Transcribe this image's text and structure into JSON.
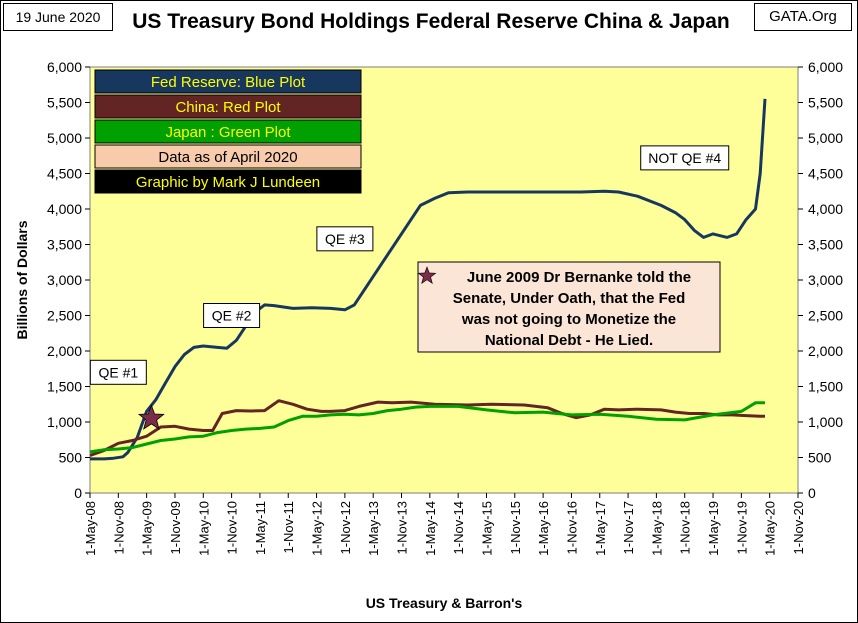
{
  "header": {
    "date": "19 June 2020",
    "title": "US Treasury Bond Holdings Federal Reserve China & Japan",
    "source": "GATA.Org"
  },
  "legend": [
    {
      "text": "Fed Reserve: Blue Plot",
      "bg": "#17375e",
      "fg": "#ffff00"
    },
    {
      "text": "China: Red Plot",
      "bg": "#632523",
      "fg": "#ffff00"
    },
    {
      "text": "Japan : Green Plot",
      "bg": "#00a000",
      "fg": "#ffff00"
    },
    {
      "text": "Data as of April 2020",
      "bg": "#f8cbad",
      "fg": "#000000"
    },
    {
      "text": "Graphic by Mark J Lundeen",
      "bg": "#000000",
      "fg": "#ffff00"
    }
  ],
  "annotations": [
    {
      "id": "qe1",
      "text": "QE #1",
      "x": "2008-11",
      "y": 1700
    },
    {
      "id": "qe2",
      "text": "QE #2",
      "x": "2010-11",
      "y": 2500
    },
    {
      "id": "qe3",
      "text": "QE #3",
      "x": "2012-11",
      "y": 3580
    },
    {
      "id": "qe4",
      "text": "NOT QE #4",
      "x": "2018-11",
      "y": 4720
    }
  ],
  "quote": {
    "lines": [
      "June 2009 Dr Bernanke told the",
      "Senate, Under Oath, that the Fed",
      "was not going to Monetize the",
      "National Debt - He Lied."
    ],
    "bg": "#fbe5d6"
  },
  "star": {
    "x": "2009-06",
    "y": 1050,
    "color": "#7b2c4a"
  },
  "footer": {
    "xlabel": "US Treasury & Barron's"
  },
  "chart_data": {
    "type": "line",
    "title": "US Treasury Bond Holdings Federal Reserve China & Japan",
    "xlabel": "US Treasury & Barron's",
    "ylabel": "Billions of Dollars",
    "ylim": [
      0,
      6000
    ],
    "yticks": [
      0,
      500,
      1000,
      1500,
      2000,
      2500,
      3000,
      3500,
      4000,
      4500,
      5000,
      5500,
      6000
    ],
    "yticklabels": [
      "0",
      "500",
      "1,000",
      "1,500",
      "2,000",
      "2,500",
      "3,000",
      "3,500",
      "4,000",
      "4,500",
      "5,000",
      "5,500",
      "6,000"
    ],
    "xlim": [
      "2008-05",
      "2020-11"
    ],
    "xticks": [
      "1-May-08",
      "1-Nov-08",
      "1-May-09",
      "1-Nov-09",
      "1-May-10",
      "1-Nov-10",
      "1-May-11",
      "1-Nov-11",
      "1-May-12",
      "1-Nov-12",
      "1-May-13",
      "1-Nov-13",
      "1-May-14",
      "1-Nov-14",
      "1-May-15",
      "1-Nov-15",
      "1-May-16",
      "1-Nov-16",
      "1-May-17",
      "1-Nov-17",
      "1-May-18",
      "1-Nov-18",
      "1-May-19",
      "1-Nov-19",
      "1-May-20",
      "1-Nov-20"
    ],
    "grid": false,
    "series": [
      {
        "name": "Fed Reserve",
        "color": "#17375e",
        "points": [
          [
            "2008-05",
            480
          ],
          [
            "2008-08",
            480
          ],
          [
            "2008-10",
            490
          ],
          [
            "2008-12",
            510
          ],
          [
            "2009-01",
            570
          ],
          [
            "2009-03",
            780
          ],
          [
            "2009-05",
            1150
          ],
          [
            "2009-07",
            1320
          ],
          [
            "2009-09",
            1550
          ],
          [
            "2009-11",
            1780
          ],
          [
            "2010-01",
            1950
          ],
          [
            "2010-03",
            2050
          ],
          [
            "2010-05",
            2070
          ],
          [
            "2010-08",
            2050
          ],
          [
            "2010-10",
            2040
          ],
          [
            "2010-12",
            2150
          ],
          [
            "2011-02",
            2350
          ],
          [
            "2011-04",
            2550
          ],
          [
            "2011-06",
            2650
          ],
          [
            "2011-08",
            2640
          ],
          [
            "2011-10",
            2620
          ],
          [
            "2011-12",
            2600
          ],
          [
            "2012-04",
            2610
          ],
          [
            "2012-08",
            2600
          ],
          [
            "2012-11",
            2580
          ],
          [
            "2013-01",
            2650
          ],
          [
            "2013-04",
            2950
          ],
          [
            "2013-07",
            3250
          ],
          [
            "2013-10",
            3550
          ],
          [
            "2014-01",
            3850
          ],
          [
            "2014-03",
            4050
          ],
          [
            "2014-06",
            4150
          ],
          [
            "2014-09",
            4230
          ],
          [
            "2015-01",
            4240
          ],
          [
            "2015-06",
            4240
          ],
          [
            "2016-01",
            4240
          ],
          [
            "2016-06",
            4240
          ],
          [
            "2017-01",
            4240
          ],
          [
            "2017-06",
            4250
          ],
          [
            "2017-09",
            4240
          ],
          [
            "2018-01",
            4180
          ],
          [
            "2018-06",
            4050
          ],
          [
            "2018-09",
            3950
          ],
          [
            "2018-11",
            3850
          ],
          [
            "2019-01",
            3700
          ],
          [
            "2019-03",
            3600
          ],
          [
            "2019-05",
            3650
          ],
          [
            "2019-08",
            3600
          ],
          [
            "2019-10",
            3650
          ],
          [
            "2019-12",
            3850
          ],
          [
            "2020-02",
            4000
          ],
          [
            "2020-03",
            4500
          ],
          [
            "2020-04",
            5550
          ]
        ]
      },
      {
        "name": "China",
        "color": "#632523",
        "points": [
          [
            "2008-05",
            530
          ],
          [
            "2008-08",
            600
          ],
          [
            "2008-11",
            700
          ],
          [
            "2009-02",
            740
          ],
          [
            "2009-05",
            800
          ],
          [
            "2009-08",
            930
          ],
          [
            "2009-11",
            940
          ],
          [
            "2010-02",
            900
          ],
          [
            "2010-05",
            880
          ],
          [
            "2010-07",
            880
          ],
          [
            "2010-09",
            1120
          ],
          [
            "2010-12",
            1160
          ],
          [
            "2011-03",
            1155
          ],
          [
            "2011-06",
            1160
          ],
          [
            "2011-09",
            1300
          ],
          [
            "2011-12",
            1250
          ],
          [
            "2012-03",
            1180
          ],
          [
            "2012-06",
            1150
          ],
          [
            "2012-08",
            1150
          ],
          [
            "2012-11",
            1160
          ],
          [
            "2013-02",
            1220
          ],
          [
            "2013-06",
            1280
          ],
          [
            "2013-09",
            1270
          ],
          [
            "2014-01",
            1280
          ],
          [
            "2014-06",
            1250
          ],
          [
            "2015-01",
            1240
          ],
          [
            "2015-06",
            1250
          ],
          [
            "2016-01",
            1240
          ],
          [
            "2016-06",
            1200
          ],
          [
            "2016-09",
            1120
          ],
          [
            "2016-12",
            1060
          ],
          [
            "2017-03",
            1100
          ],
          [
            "2017-06",
            1180
          ],
          [
            "2017-09",
            1170
          ],
          [
            "2018-01",
            1180
          ],
          [
            "2018-06",
            1170
          ],
          [
            "2018-09",
            1140
          ],
          [
            "2018-12",
            1120
          ],
          [
            "2019-03",
            1120
          ],
          [
            "2019-06",
            1100
          ],
          [
            "2019-09",
            1100
          ],
          [
            "2019-12",
            1090
          ],
          [
            "2020-03",
            1080
          ],
          [
            "2020-04",
            1080
          ]
        ]
      },
      {
        "name": "Japan",
        "color": "#00a000",
        "points": [
          [
            "2008-05",
            580
          ],
          [
            "2008-08",
            610
          ],
          [
            "2008-11",
            620
          ],
          [
            "2009-02",
            640
          ],
          [
            "2009-05",
            690
          ],
          [
            "2009-08",
            740
          ],
          [
            "2009-11",
            760
          ],
          [
            "2010-02",
            790
          ],
          [
            "2010-05",
            800
          ],
          [
            "2010-08",
            850
          ],
          [
            "2010-11",
            880
          ],
          [
            "2011-02",
            900
          ],
          [
            "2011-05",
            910
          ],
          [
            "2011-08",
            930
          ],
          [
            "2011-11",
            1020
          ],
          [
            "2012-02",
            1080
          ],
          [
            "2012-05",
            1080
          ],
          [
            "2012-08",
            1100
          ],
          [
            "2012-11",
            1110
          ],
          [
            "2013-02",
            1100
          ],
          [
            "2013-05",
            1120
          ],
          [
            "2013-08",
            1160
          ],
          [
            "2013-11",
            1180
          ],
          [
            "2014-02",
            1210
          ],
          [
            "2014-05",
            1220
          ],
          [
            "2014-11",
            1220
          ],
          [
            "2015-05",
            1170
          ],
          [
            "2015-11",
            1130
          ],
          [
            "2016-05",
            1140
          ],
          [
            "2016-11",
            1100
          ],
          [
            "2017-05",
            1110
          ],
          [
            "2017-11",
            1080
          ],
          [
            "2018-05",
            1040
          ],
          [
            "2018-11",
            1030
          ],
          [
            "2019-05",
            1100
          ],
          [
            "2019-11",
            1150
          ],
          [
            "2020-02",
            1270
          ],
          [
            "2020-04",
            1270
          ]
        ]
      }
    ]
  }
}
